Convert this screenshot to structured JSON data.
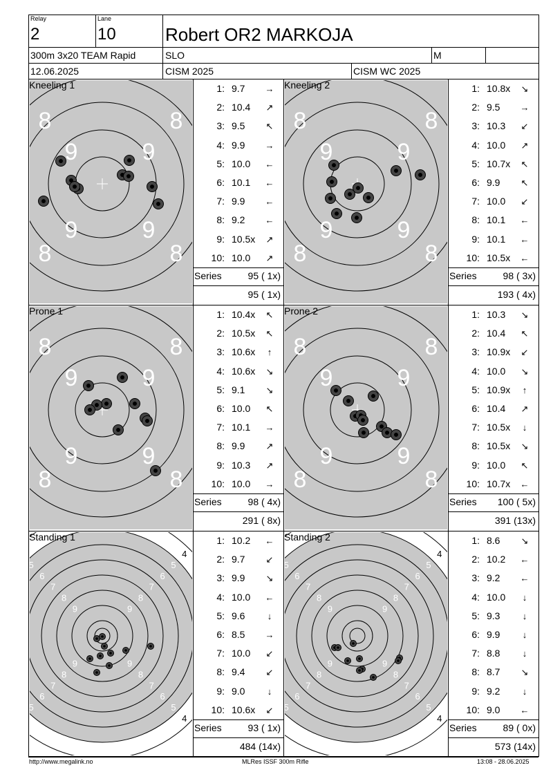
{
  "header": {
    "relay_label": "Relay",
    "relay": "2",
    "lane_label": "Lane",
    "lane": "10",
    "name": "Robert OR2 MARKOJA",
    "event": "300m 3x20 TEAM Rapid",
    "country": "SLO",
    "gender": "M",
    "date": "12.06.2025",
    "competition": "CISM 2025",
    "match": "CISM WC 2025"
  },
  "panels": [
    {
      "title": "Kneeling 1",
      "target": "prone",
      "shots": [
        {
          "n": "1:",
          "v": "9.7",
          "a": "→"
        },
        {
          "n": "2:",
          "v": "10.4",
          "a": "↗"
        },
        {
          "n": "3:",
          "v": "9.5",
          "a": "↖"
        },
        {
          "n": "4:",
          "v": "9.9",
          "a": "→"
        },
        {
          "n": "5:",
          "v": "10.0",
          "a": "←"
        },
        {
          "n": "6:",
          "v": "10.1",
          "a": "←"
        },
        {
          "n": "7:",
          "v": "9.9",
          "a": "←"
        },
        {
          "n": "8:",
          "v": "9.2",
          "a": "←"
        },
        {
          "n": "9:",
          "v": "10.5x",
          "a": "↗"
        },
        {
          "n": "10:",
          "v": "10.0",
          "a": "↗"
        }
      ],
      "series_label": "Series",
      "series": "95 ( 1x)",
      "total": "95 ( 1x)"
    },
    {
      "title": "Kneeling 2",
      "target": "prone",
      "shots": [
        {
          "n": "1:",
          "v": "10.8x",
          "a": "↘"
        },
        {
          "n": "2:",
          "v": "9.5",
          "a": "→"
        },
        {
          "n": "3:",
          "v": "10.3",
          "a": "↙"
        },
        {
          "n": "4:",
          "v": "10.0",
          "a": "↗"
        },
        {
          "n": "5:",
          "v": "10.7x",
          "a": "↖"
        },
        {
          "n": "6:",
          "v": "9.9",
          "a": "↖"
        },
        {
          "n": "7:",
          "v": "10.0",
          "a": "↙"
        },
        {
          "n": "8:",
          "v": "10.1",
          "a": "←"
        },
        {
          "n": "9:",
          "v": "10.1",
          "a": "←"
        },
        {
          "n": "10:",
          "v": "10.5x",
          "a": "←"
        }
      ],
      "series_label": "Series",
      "series": "98 ( 3x)",
      "total": "193 ( 4x)"
    },
    {
      "title": "Prone 1",
      "target": "prone",
      "shots": [
        {
          "n": "1:",
          "v": "10.4x",
          "a": "↖"
        },
        {
          "n": "2:",
          "v": "10.5x",
          "a": "↖"
        },
        {
          "n": "3:",
          "v": "10.6x",
          "a": "↑"
        },
        {
          "n": "4:",
          "v": "10.6x",
          "a": "↘"
        },
        {
          "n": "5:",
          "v": "9.1",
          "a": "↘"
        },
        {
          "n": "6:",
          "v": "10.0",
          "a": "↖"
        },
        {
          "n": "7:",
          "v": "10.1",
          "a": "→"
        },
        {
          "n": "8:",
          "v": "9.9",
          "a": "↗"
        },
        {
          "n": "9:",
          "v": "10.3",
          "a": "↗"
        },
        {
          "n": "10:",
          "v": "10.0",
          "a": "→"
        }
      ],
      "series_label": "Series",
      "series": "98 ( 4x)",
      "total": "291 ( 8x)"
    },
    {
      "title": "Prone 2",
      "target": "prone",
      "shots": [
        {
          "n": "1:",
          "v": "10.3",
          "a": "↘"
        },
        {
          "n": "2:",
          "v": "10.4",
          "a": "↖"
        },
        {
          "n": "3:",
          "v": "10.9x",
          "a": "↙"
        },
        {
          "n": "4:",
          "v": "10.0",
          "a": "↘"
        },
        {
          "n": "5:",
          "v": "10.9x",
          "a": "↑"
        },
        {
          "n": "6:",
          "v": "10.4",
          "a": "↗"
        },
        {
          "n": "7:",
          "v": "10.5x",
          "a": "↓"
        },
        {
          "n": "8:",
          "v": "10.5x",
          "a": "↘"
        },
        {
          "n": "9:",
          "v": "10.0",
          "a": "↖"
        },
        {
          "n": "10:",
          "v": "10.7x",
          "a": "←"
        }
      ],
      "series_label": "Series",
      "series": "100 ( 5x)",
      "total": "391 (13x)"
    },
    {
      "title": "Standing 1",
      "target": "standing",
      "shots": [
        {
          "n": "1:",
          "v": "10.2",
          "a": "←"
        },
        {
          "n": "2:",
          "v": "9.7",
          "a": "↙"
        },
        {
          "n": "3:",
          "v": "9.9",
          "a": "↘"
        },
        {
          "n": "4:",
          "v": "10.0",
          "a": "←"
        },
        {
          "n": "5:",
          "v": "9.6",
          "a": "↓"
        },
        {
          "n": "6:",
          "v": "8.5",
          "a": "→"
        },
        {
          "n": "7:",
          "v": "10.0",
          "a": "↙"
        },
        {
          "n": "8:",
          "v": "9.4",
          "a": "↙"
        },
        {
          "n": "9:",
          "v": "9.0",
          "a": "↓"
        },
        {
          "n": "10:",
          "v": "10.6x",
          "a": "↙"
        }
      ],
      "series_label": "Series",
      "series": "93 ( 1x)",
      "total": "484 (14x)"
    },
    {
      "title": "Standing 2",
      "target": "standing",
      "shots": [
        {
          "n": "1:",
          "v": "8.6",
          "a": "↘"
        },
        {
          "n": "2:",
          "v": "10.2",
          "a": "←"
        },
        {
          "n": "3:",
          "v": "9.2",
          "a": "←"
        },
        {
          "n": "4:",
          "v": "10.0",
          "a": "↓"
        },
        {
          "n": "5:",
          "v": "9.3",
          "a": "↓"
        },
        {
          "n": "6:",
          "v": "9.9",
          "a": "↓"
        },
        {
          "n": "7:",
          "v": "8.8",
          "a": "↓"
        },
        {
          "n": "8:",
          "v": "8.7",
          "a": "↘"
        },
        {
          "n": "9:",
          "v": "9.2",
          "a": "↓"
        },
        {
          "n": "10:",
          "v": "9.0",
          "a": "←"
        }
      ],
      "series_label": "Series",
      "series": "89 ( 0x)",
      "total": "573 (14x)"
    }
  ],
  "prone_target_labels": [
    "8",
    "9"
  ],
  "standing_target_labels": [
    "4",
    "5",
    "6",
    "7",
    "8",
    "9"
  ],
  "footer": {
    "left": "http://www.megalink.no",
    "center": "MLRes ISSF 300m Rifle",
    "right": "13:08 - 28.06.2025"
  }
}
